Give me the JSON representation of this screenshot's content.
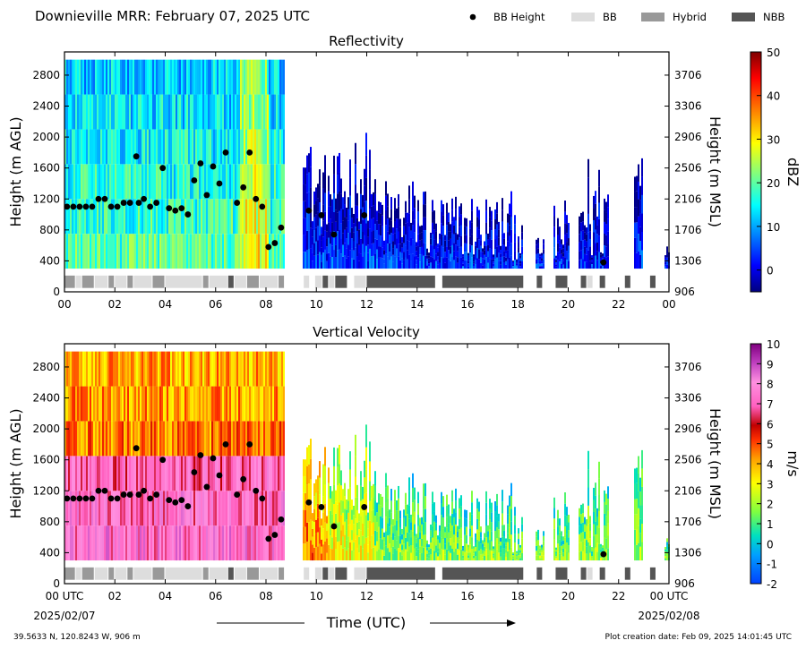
{
  "figure": {
    "title": "Downieville MRR:  February 07, 2025 UTC",
    "location": "39.5633 N, 120.8243 W, 906 m",
    "creation": "Plot creation date: Feb 09, 2025 14:01:45 UTC",
    "xlabel": "Time (UTC)",
    "start_date": "2025/02/07",
    "end_date": "2025/02/08"
  },
  "legend": {
    "items": [
      {
        "label": "BB Height",
        "kind": "dot",
        "color": "#000000"
      },
      {
        "label": "BB",
        "kind": "box",
        "color": "#dddddd"
      },
      {
        "label": "Hybrid",
        "kind": "box",
        "color": "#999999"
      },
      {
        "label": "NBB",
        "kind": "box",
        "color": "#555555"
      }
    ]
  },
  "chart_data": [
    {
      "type": "heatmap",
      "title": "Reflectivity",
      "ylabel": "Height (m AGL)",
      "y2label": "Height (m MSL)",
      "colorbar_label": "dBZ",
      "x_ticks": [
        "00",
        "02",
        "04",
        "06",
        "08",
        "10",
        "12",
        "14",
        "16",
        "18",
        "20",
        "22",
        "00"
      ],
      "y_ticks": [
        0,
        400,
        800,
        1200,
        1600,
        2000,
        2400,
        2800
      ],
      "y2_ticks": [
        906,
        1306,
        1706,
        2106,
        2506,
        2906,
        3306,
        3706
      ],
      "ylim": [
        0,
        3100
      ],
      "colorbar_ticks": [
        "50",
        "40",
        "30",
        "20",
        "10",
        "0"
      ],
      "clim": [
        -5,
        50
      ]
    },
    {
      "type": "heatmap",
      "title": "Vertical Velocity",
      "ylabel": "Height (m AGL)",
      "y2label": "Height (m MSL)",
      "colorbar_label": "m/s",
      "x_ticks": [
        "00 UTC",
        "02",
        "04",
        "06",
        "08",
        "10",
        "12",
        "14",
        "16",
        "18",
        "20",
        "22",
        "00 UTC"
      ],
      "y_ticks": [
        0,
        400,
        800,
        1200,
        1600,
        2000,
        2400,
        2800
      ],
      "y2_ticks": [
        906,
        1306,
        1706,
        2106,
        2506,
        2906,
        3306,
        3706
      ],
      "ylim": [
        0,
        3100
      ],
      "colorbar_ticks": [
        "10",
        "9",
        "8",
        "7",
        "6",
        "5",
        "4",
        "3",
        "2",
        "1",
        "0",
        "-1",
        "-2"
      ],
      "clim": [
        -2,
        10
      ]
    }
  ],
  "bb_heights": {
    "x_hours": [
      0.1,
      0.35,
      0.6,
      0.85,
      1.1,
      1.35,
      1.6,
      1.85,
      2.1,
      2.35,
      2.6,
      2.85,
      2.95,
      3.15,
      3.4,
      3.65,
      3.9,
      4.15,
      4.4,
      4.65,
      4.9,
      5.15,
      5.4,
      5.65,
      5.9,
      6.15,
      6.4,
      6.85,
      7.1,
      7.35,
      7.6,
      7.85,
      8.1,
      8.35,
      8.6,
      9.7,
      10.2,
      10.7,
      11.9,
      21.4
    ],
    "y_m": [
      1100,
      1100,
      1100,
      1100,
      1100,
      1200,
      1200,
      1100,
      1100,
      1150,
      1150,
      1750,
      1150,
      1200,
      1100,
      1150,
      1600,
      1080,
      1050,
      1080,
      1000,
      1440,
      1660,
      1250,
      1620,
      1400,
      1800,
      1150,
      1350,
      1800,
      1200,
      1100,
      580,
      630,
      830,
      1050,
      990,
      740,
      990,
      380
    ]
  },
  "bb_bar": {
    "segments": [
      {
        "start": 0.0,
        "end": 0.45,
        "class": "Hybrid"
      },
      {
        "start": 0.45,
        "end": 0.7,
        "class": "BB"
      },
      {
        "start": 0.7,
        "end": 1.2,
        "class": "Hybrid"
      },
      {
        "start": 1.2,
        "end": 1.75,
        "class": "BB"
      },
      {
        "start": 1.75,
        "end": 2.0,
        "class": "Hybrid"
      },
      {
        "start": 2.0,
        "end": 2.5,
        "class": "BB"
      },
      {
        "start": 2.5,
        "end": 2.75,
        "class": "Hybrid"
      },
      {
        "start": 2.75,
        "end": 3.5,
        "class": "BB"
      },
      {
        "start": 3.5,
        "end": 4.0,
        "class": "Hybrid"
      },
      {
        "start": 4.0,
        "end": 5.5,
        "class": "BB"
      },
      {
        "start": 5.5,
        "end": 5.75,
        "class": "Hybrid"
      },
      {
        "start": 5.75,
        "end": 6.5,
        "class": "BB"
      },
      {
        "start": 6.5,
        "end": 6.75,
        "class": "NBB"
      },
      {
        "start": 6.75,
        "end": 7.25,
        "class": "BB"
      },
      {
        "start": 7.25,
        "end": 7.75,
        "class": "Hybrid"
      },
      {
        "start": 7.75,
        "end": 8.5,
        "class": "BB"
      },
      {
        "start": 8.5,
        "end": 8.75,
        "class": "Hybrid"
      },
      {
        "start": 9.5,
        "end": 9.75,
        "class": "BB"
      },
      {
        "start": 9.95,
        "end": 10.25,
        "class": "BB"
      },
      {
        "start": 10.25,
        "end": 10.5,
        "class": "NBB"
      },
      {
        "start": 10.5,
        "end": 10.75,
        "class": "BB"
      },
      {
        "start": 10.75,
        "end": 11.25,
        "class": "NBB"
      },
      {
        "start": 11.5,
        "end": 12.0,
        "class": "BB"
      },
      {
        "start": 12.0,
        "end": 14.75,
        "class": "NBB"
      },
      {
        "start": 15.0,
        "end": 18.25,
        "class": "NBB"
      },
      {
        "start": 18.75,
        "end": 19.0,
        "class": "NBB"
      },
      {
        "start": 19.5,
        "end": 20.0,
        "class": "NBB"
      },
      {
        "start": 20.5,
        "end": 20.75,
        "class": "NBB"
      },
      {
        "start": 20.75,
        "end": 21.0,
        "class": "BB"
      },
      {
        "start": 21.25,
        "end": 21.5,
        "class": "NBB"
      },
      {
        "start": 22.25,
        "end": 22.5,
        "class": "NBB"
      },
      {
        "start": 23.25,
        "end": 23.5,
        "class": "NBB"
      }
    ]
  }
}
